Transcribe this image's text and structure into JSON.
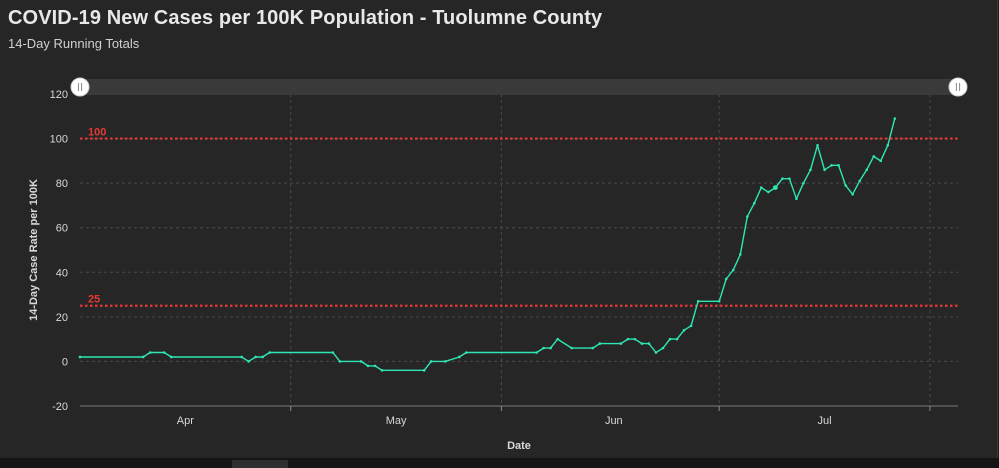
{
  "header": {
    "title": "COVID-19 New Cases per 100K Population - Tuolumne County",
    "subtitle": "14-Day Running Totals"
  },
  "colors": {
    "line": "#2ee6b4",
    "reference": "#e53935",
    "grid": "#4a4a4a",
    "background": "#262626"
  },
  "chart_data": {
    "type": "line",
    "xlabel": "Date",
    "ylabel": "14-Day Case Rate per 100K",
    "ylim": [
      -20,
      120
    ],
    "yticks": [
      -20,
      0,
      20,
      40,
      60,
      80,
      100,
      120
    ],
    "xlim": [
      "2020-03-17",
      "2020-07-20"
    ],
    "xticks": [
      {
        "label": "Apr",
        "date": "2020-04-01"
      },
      {
        "label": "May",
        "date": "2020-05-01"
      },
      {
        "label": "Jun",
        "date": "2020-06-01"
      },
      {
        "label": "Jul",
        "date": "2020-07-01"
      }
    ],
    "month_boundaries": [
      "2020-04-16",
      "2020-05-16",
      "2020-06-16",
      "2020-07-16"
    ],
    "reference_lines": [
      {
        "value": 100,
        "label": "100"
      },
      {
        "value": 25,
        "label": "25"
      }
    ],
    "grid": true,
    "legend": "none",
    "series": [
      {
        "marker_dates": [
          "2020-06-24",
          "2020-07-18"
        ],
        "points": [
          [
            "2020-03-17",
            2
          ],
          [
            "2020-03-26",
            2
          ],
          [
            "2020-03-27",
            4
          ],
          [
            "2020-03-29",
            4
          ],
          [
            "2020-03-30",
            2
          ],
          [
            "2020-04-09",
            2
          ],
          [
            "2020-04-10",
            0
          ],
          [
            "2020-04-11",
            2
          ],
          [
            "2020-04-12",
            2
          ],
          [
            "2020-04-13",
            4
          ],
          [
            "2020-04-22",
            4
          ],
          [
            "2020-04-23",
            0
          ],
          [
            "2020-04-26",
            0
          ],
          [
            "2020-04-27",
            -2
          ],
          [
            "2020-04-28",
            -2
          ],
          [
            "2020-04-29",
            -4
          ],
          [
            "2020-05-05",
            -4
          ],
          [
            "2020-05-06",
            0
          ],
          [
            "2020-05-08",
            0
          ],
          [
            "2020-05-10",
            2
          ],
          [
            "2020-05-11",
            4
          ],
          [
            "2020-05-21",
            4
          ],
          [
            "2020-05-22",
            6
          ],
          [
            "2020-05-23",
            6
          ],
          [
            "2020-05-24",
            10
          ],
          [
            "2020-05-26",
            6
          ],
          [
            "2020-05-29",
            6
          ],
          [
            "2020-05-30",
            8
          ],
          [
            "2020-06-02",
            8
          ],
          [
            "2020-06-03",
            10
          ],
          [
            "2020-06-04",
            10
          ],
          [
            "2020-06-05",
            8
          ],
          [
            "2020-06-06",
            8
          ],
          [
            "2020-06-07",
            4
          ],
          [
            "2020-06-08",
            6
          ],
          [
            "2020-06-09",
            10
          ],
          [
            "2020-06-10",
            10
          ],
          [
            "2020-06-11",
            14
          ],
          [
            "2020-06-12",
            16
          ],
          [
            "2020-06-13",
            27
          ],
          [
            "2020-06-16",
            27
          ],
          [
            "2020-06-17",
            37
          ],
          [
            "2020-06-18",
            41
          ],
          [
            "2020-06-19",
            48
          ],
          [
            "2020-06-20",
            65
          ],
          [
            "2020-06-21",
            71
          ],
          [
            "2020-06-22",
            78
          ],
          [
            "2020-06-23",
            76
          ],
          [
            "2020-06-24",
            78
          ],
          [
            "2020-06-25",
            82
          ],
          [
            "2020-06-26",
            82
          ],
          [
            "2020-06-27",
            73
          ],
          [
            "2020-06-28",
            80
          ],
          [
            "2020-06-29",
            86
          ],
          [
            "2020-06-30",
            97
          ],
          [
            "2020-07-01",
            86
          ],
          [
            "2020-07-02",
            88
          ],
          [
            "2020-07-03",
            88
          ],
          [
            "2020-07-04",
            79
          ],
          [
            "2020-07-05",
            75
          ],
          [
            "2020-07-06",
            81
          ],
          [
            "2020-07-07",
            86
          ],
          [
            "2020-07-08",
            92
          ],
          [
            "2020-07-09",
            90
          ],
          [
            "2020-07-10",
            97
          ],
          [
            "2020-07-11",
            109
          ]
        ]
      }
    ]
  }
}
